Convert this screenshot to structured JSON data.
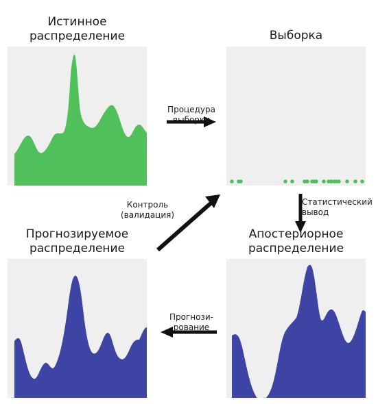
{
  "panels": {
    "true_dist": {
      "title_line1": "Истинное",
      "title_line2": "распределение",
      "color": "#50c05a"
    },
    "sample": {
      "title": "Выборка",
      "dot_color": "#50c05a"
    },
    "posterior": {
      "title_line1": "Апостериорное",
      "title_line2": "распределение",
      "color": "#3d44a3"
    },
    "predictive": {
      "title_line1": "Прогнозируемое",
      "title_line2": "распределение",
      "color": "#3d44a3"
    }
  },
  "arrows": {
    "sampling": {
      "line1": "Процедура",
      "line2": "выборки"
    },
    "inference": {
      "line1": "Статистический",
      "line2": "вывод"
    },
    "prediction": {
      "line1": "Прогнози-",
      "line2": "рование"
    },
    "validation": {
      "line1": "Контроль",
      "line2": "(валидация)"
    }
  },
  "colors": {
    "panel_bg": "#efefef",
    "arrow": "#111111"
  }
}
